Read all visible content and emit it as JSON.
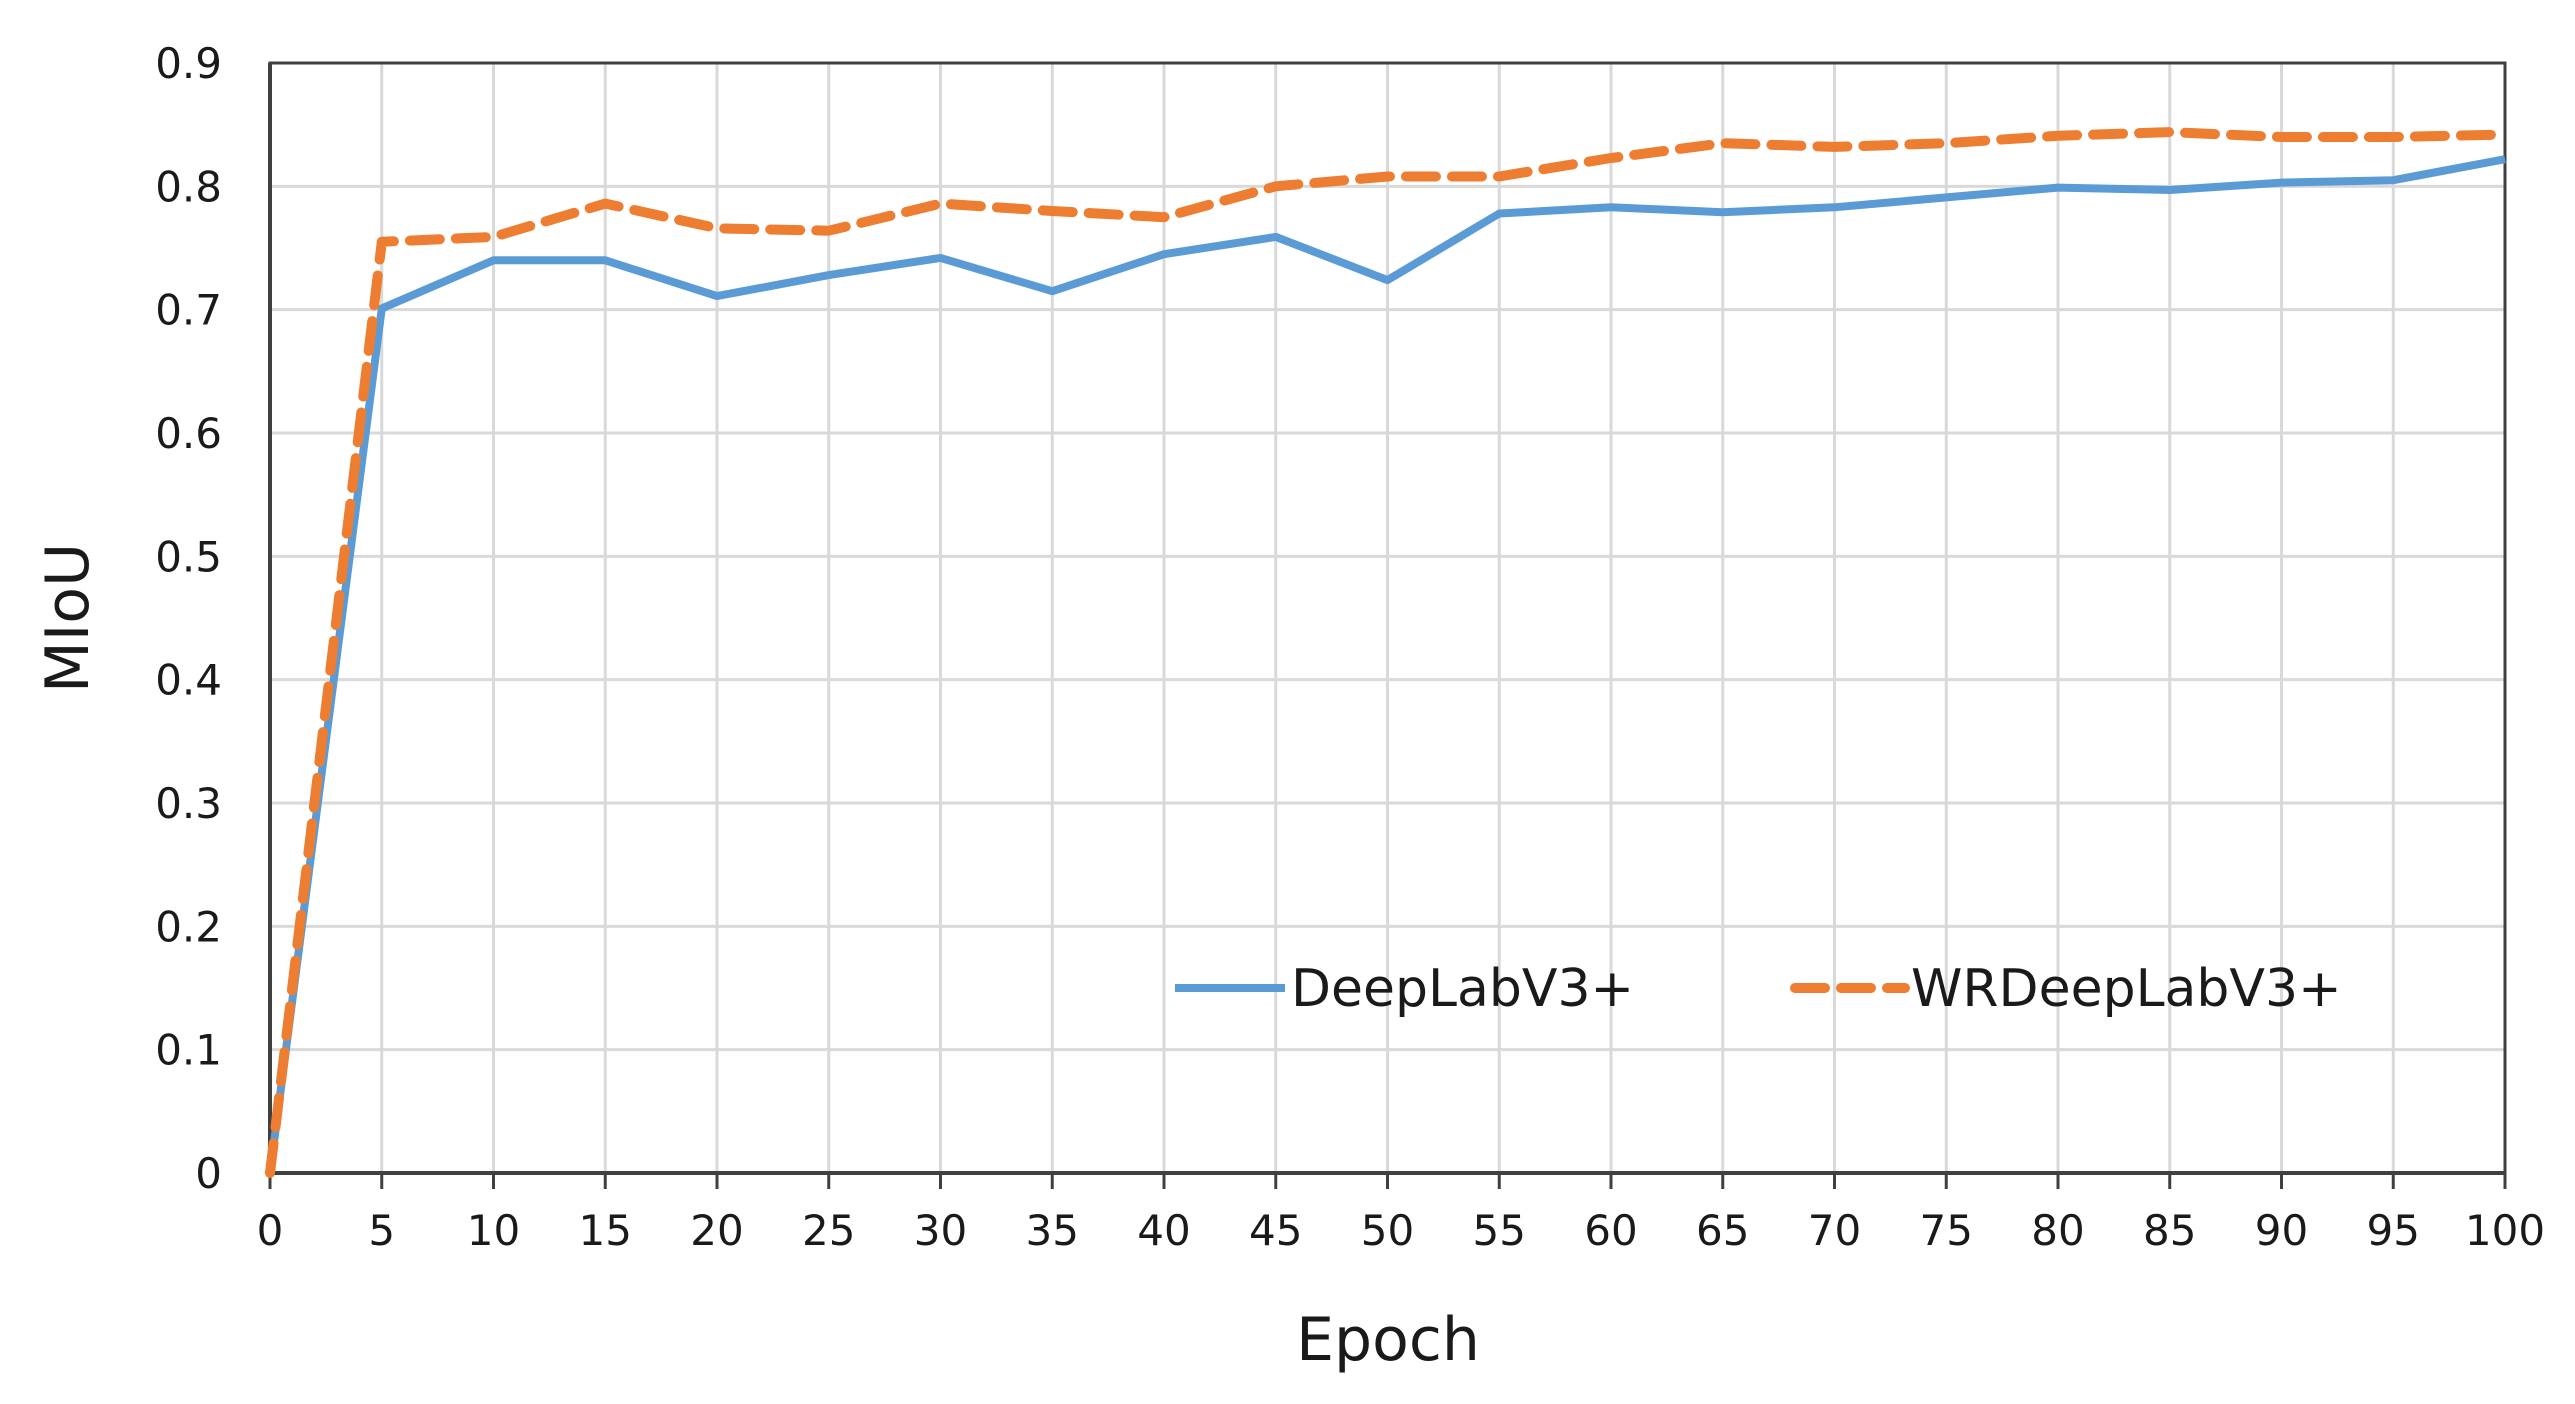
{
  "chart_data": {
    "type": "line",
    "title": "",
    "xlabel": "Epoch",
    "ylabel": "MIoU",
    "xlim": [
      0,
      100
    ],
    "ylim": [
      0,
      0.9
    ],
    "x_ticks": [
      0,
      5,
      10,
      15,
      20,
      25,
      30,
      35,
      40,
      45,
      50,
      55,
      60,
      65,
      70,
      75,
      80,
      85,
      90,
      95,
      100
    ],
    "y_ticks": [
      0,
      0.1,
      0.2,
      0.3,
      0.4,
      0.5,
      0.6,
      0.7,
      0.8,
      0.9
    ],
    "y_tick_labels": [
      "0",
      "0.1",
      "0.2",
      "0.3",
      "0.4",
      "0.5",
      "0.6",
      "0.7",
      "0.8",
      "0.9"
    ],
    "grid": true,
    "legend_position": "bottom-right",
    "x": [
      0,
      5,
      10,
      15,
      20,
      25,
      30,
      35,
      40,
      45,
      50,
      55,
      60,
      65,
      70,
      75,
      80,
      85,
      90,
      95,
      100
    ],
    "series": [
      {
        "name": "DeepLabV3+",
        "color": "#5b9bd5",
        "style": "solid",
        "values": [
          0.0,
          0.701,
          0.74,
          0.74,
          0.711,
          0.728,
          0.742,
          0.715,
          0.745,
          0.759,
          0.724,
          0.778,
          0.783,
          0.779,
          0.783,
          0.791,
          0.799,
          0.797,
          0.803,
          0.805,
          0.822
        ]
      },
      {
        "name": "WRDeepLabV3+",
        "color": "#ed7d31",
        "style": "dashed",
        "values": [
          0.0,
          0.755,
          0.759,
          0.786,
          0.766,
          0.764,
          0.786,
          0.78,
          0.775,
          0.8,
          0.808,
          0.808,
          0.823,
          0.835,
          0.832,
          0.835,
          0.841,
          0.844,
          0.84,
          0.84,
          0.842
        ]
      }
    ]
  }
}
